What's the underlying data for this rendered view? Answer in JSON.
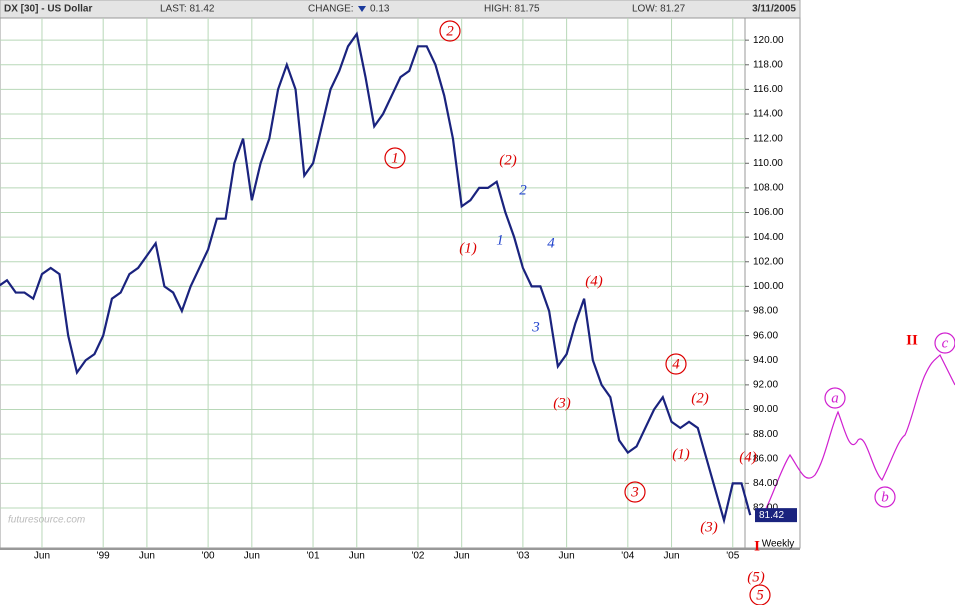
{
  "chart_data": {
    "type": "line",
    "title": "DX [30] - US Dollar",
    "last_label": "LAST: 81.42",
    "change_label": "CHANGE:",
    "change_value": "0.13",
    "high_label": "HIGH: 81.75",
    "low_label": "LOW: 81.27",
    "date": "3/11/2005",
    "frequency": "Weekly",
    "price_tag": "81.42",
    "watermark": "futuresource.com",
    "series": [
      {
        "name": "US Dollar",
        "color": "#1a237e",
        "values": [
          100,
          100.5,
          99.5,
          99.5,
          99,
          101,
          101.5,
          101,
          96,
          93,
          94,
          94.5,
          96,
          99,
          99.5,
          101,
          101.5,
          102.5,
          103.5,
          100,
          99.5,
          98,
          100,
          101.5,
          103,
          105.5,
          105.5,
          110,
          112,
          107,
          110,
          112,
          116,
          118,
          116,
          109,
          110,
          113,
          116,
          117.5,
          119.5,
          120.5,
          117,
          113,
          114,
          115.5,
          117,
          117.5,
          119.5,
          119.5,
          118,
          115.5,
          112,
          106.5,
          107,
          108,
          108,
          108.5,
          106,
          104,
          101.5,
          100,
          100,
          98,
          93.5,
          94.5,
          97,
          99,
          94,
          92,
          91,
          87.5,
          86.5,
          87,
          88.5,
          90,
          91,
          89,
          88.5,
          89,
          88.5,
          86,
          83.5,
          81,
          84,
          84,
          81.42
        ]
      }
    ],
    "xlim": [
      0.2,
      85.4
    ],
    "xticks": [
      {
        "value": 5,
        "label": "Jun"
      },
      {
        "value": 12,
        "label": "'99"
      },
      {
        "value": 17,
        "label": "Jun"
      },
      {
        "value": 24,
        "label": "'00"
      },
      {
        "value": 29,
        "label": "Jun"
      },
      {
        "value": 36,
        "label": "'01"
      },
      {
        "value": 41,
        "label": "Jun"
      },
      {
        "value": 48,
        "label": "'02"
      },
      {
        "value": 53,
        "label": "Jun"
      },
      {
        "value": 60,
        "label": "'03"
      },
      {
        "value": 65,
        "label": "Jun"
      },
      {
        "value": 72,
        "label": "'04"
      },
      {
        "value": 77,
        "label": "Jun"
      },
      {
        "value": 84,
        "label": "'05"
      }
    ],
    "ylim": [
      78.75,
      121.8
    ],
    "yticks": [
      {
        "value": 82,
        "label": "82.00"
      },
      {
        "value": 84,
        "label": "84.00"
      },
      {
        "value": 86,
        "label": "86.00"
      },
      {
        "value": 88,
        "label": "88.00"
      },
      {
        "value": 90,
        "label": "90.00"
      },
      {
        "value": 92,
        "label": "92.00"
      },
      {
        "value": 94,
        "label": "94.00"
      },
      {
        "value": 96,
        "label": "96.00"
      },
      {
        "value": 98,
        "label": "98.00"
      },
      {
        "value": 100,
        "label": "100.00"
      },
      {
        "value": 102,
        "label": "102.00"
      },
      {
        "value": 104,
        "label": "104.00"
      },
      {
        "value": 106,
        "label": "106.00"
      },
      {
        "value": 108,
        "label": "108.00"
      },
      {
        "value": 110,
        "label": "110.00"
      },
      {
        "value": 112,
        "label": "112.00"
      },
      {
        "value": 114,
        "label": "114.00"
      },
      {
        "value": 116,
        "label": "116.00"
      },
      {
        "value": 118,
        "label": "118.00"
      },
      {
        "value": 120,
        "label": "120.00"
      }
    ],
    "grid": true,
    "annotations": [
      "2",
      "1",
      "(2)",
      "2",
      "(1)",
      "1",
      "4",
      "(4)",
      "3",
      "(3)",
      "4",
      "(2)",
      "(1)",
      "3",
      "(4)",
      "(3)",
      "I",
      "(5)",
      "5",
      "a",
      "b",
      "c",
      "II"
    ]
  }
}
